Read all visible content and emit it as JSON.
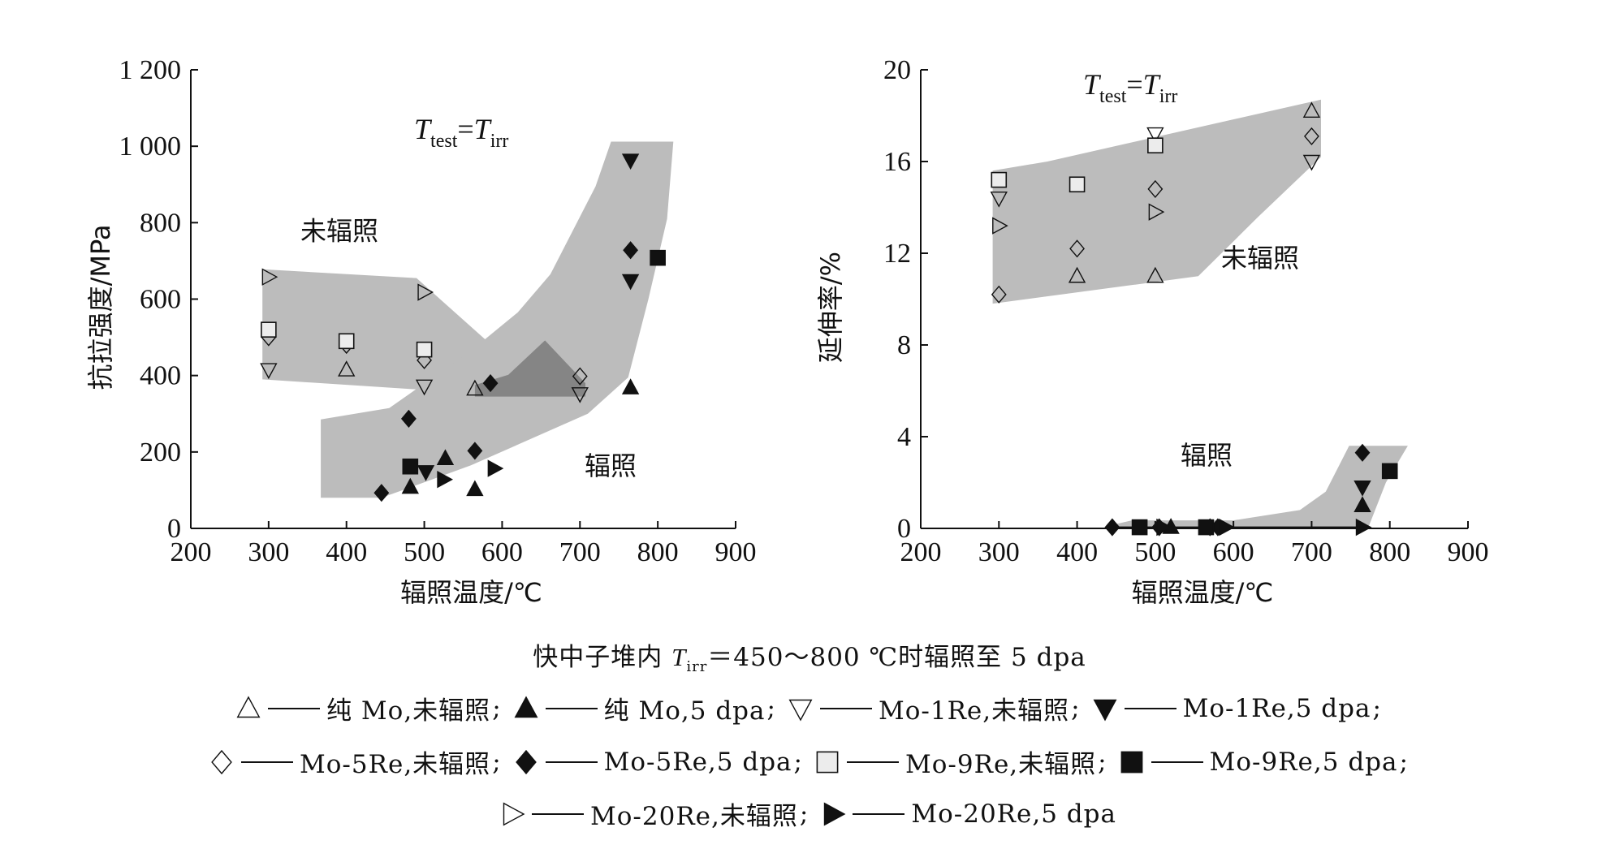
{
  "colors": {
    "band": "#bcbcbc",
    "overlap": "#858585",
    "ink": "#111111"
  },
  "chart_data": [
    {
      "type": "scatter",
      "xlabel": "辐照温度/℃",
      "ylabel": "抗拉强度/MPa",
      "xlim": [
        200,
        900
      ],
      "ylim": [
        0,
        1200
      ],
      "xticks": [
        200,
        300,
        400,
        500,
        600,
        700,
        800,
        900
      ],
      "xtick_labels": [
        "200",
        "300",
        "400",
        "500",
        "600",
        "700",
        "800",
        "900"
      ],
      "yticks": [
        0,
        200,
        400,
        600,
        800,
        1000,
        1200
      ],
      "ytick_labels": [
        "0",
        "200",
        "400",
        "600",
        "800",
        "1 000",
        "1 200"
      ],
      "annotation": {
        "T": "T",
        "sub_test": "test",
        "eq": "=",
        "sub_irr": "irr"
      },
      "region_labels": {
        "unirradiated": "未辐照",
        "irradiated": "辐照"
      },
      "regions": {
        "unirradiated": [
          [
            292,
            678
          ],
          [
            490,
            655
          ],
          [
            600,
            455
          ],
          [
            707,
            380
          ],
          [
            707,
            335
          ],
          [
            292,
            390
          ]
        ],
        "irradiated": [
          [
            367,
            285
          ],
          [
            455,
            315
          ],
          [
            560,
            465
          ],
          [
            620,
            565
          ],
          [
            662,
            665
          ],
          [
            720,
            895
          ],
          [
            740,
            1012
          ],
          [
            820,
            1012
          ],
          [
            812,
            810
          ],
          [
            788,
            600
          ],
          [
            762,
            395
          ],
          [
            710,
            300
          ],
          [
            560,
            165
          ],
          [
            445,
            80
          ],
          [
            367,
            80
          ]
        ],
        "overlap": [
          [
            608,
            402
          ],
          [
            655,
            492
          ],
          [
            707,
            380
          ],
          [
            707,
            345
          ],
          [
            565,
            345
          ],
          [
            565,
            375
          ]
        ]
      },
      "series": [
        {
          "name": "纯 Mo,未辐照",
          "marker": "triangle-up-open",
          "points": [
            [
              400,
              415
            ],
            [
              565,
              365
            ]
          ]
        },
        {
          "name": "纯 Mo,5 dpa",
          "marker": "triangle-up-filled",
          "points": [
            [
              482,
              108
            ],
            [
              527,
              183
            ],
            [
              565,
              102
            ],
            [
              765,
              368
            ]
          ]
        },
        {
          "name": "Mo-1Re,未辐照",
          "marker": "triangle-down-open",
          "points": [
            [
              300,
              415
            ],
            [
              500,
              372
            ],
            [
              700,
              352
            ]
          ]
        },
        {
          "name": "Mo-1Re,5 dpa",
          "marker": "triangle-down-filled",
          "points": [
            [
              502,
              148
            ],
            [
              765,
              963
            ],
            [
              765,
              648
            ]
          ]
        },
        {
          "name": "Mo-5Re,未辐照",
          "marker": "diamond-open",
          "points": [
            [
              300,
              500
            ],
            [
              400,
              480
            ],
            [
              500,
              440
            ],
            [
              700,
              398
            ]
          ]
        },
        {
          "name": "Mo-5Re,5 dpa",
          "marker": "diamond-filled",
          "points": [
            [
              445,
              93
            ],
            [
              480,
              287
            ],
            [
              565,
              203
            ],
            [
              585,
              380
            ],
            [
              765,
              728
            ]
          ]
        },
        {
          "name": "Mo-9Re,未辐照",
          "marker": "square-open",
          "points": [
            [
              300,
              520
            ],
            [
              400,
              490
            ],
            [
              500,
              468
            ]
          ]
        },
        {
          "name": "Mo-9Re,5 dpa",
          "marker": "square-filled",
          "points": [
            [
              482,
              162
            ],
            [
              800,
              708
            ]
          ]
        },
        {
          "name": "Mo-20Re,未辐照",
          "marker": "triangle-right-open",
          "points": [
            [
              300,
              658
            ],
            [
              500,
              618
            ]
          ]
        },
        {
          "name": "Mo-20Re,5 dpa",
          "marker": "triangle-right-filled",
          "points": [
            [
              525,
              128
            ],
            [
              590,
              157
            ]
          ]
        }
      ]
    },
    {
      "type": "scatter",
      "xlabel": "辐照温度/℃",
      "ylabel": "延伸率/%",
      "xlim": [
        200,
        900
      ],
      "ylim": [
        0,
        20
      ],
      "xticks": [
        200,
        300,
        400,
        500,
        600,
        700,
        800,
        900
      ],
      "xtick_labels": [
        "200",
        "300",
        "400",
        "500",
        "600",
        "700",
        "800",
        "900"
      ],
      "yticks": [
        0,
        4,
        8,
        12,
        16,
        20
      ],
      "ytick_labels": [
        "0",
        "4",
        "8",
        "12",
        "16",
        "20"
      ],
      "annotation": {
        "T": "T",
        "sub_test": "test",
        "eq": "=",
        "sub_irr": "irr"
      },
      "region_labels": {
        "unirradiated": "未辐照",
        "irradiated": "辐照"
      },
      "regions": {
        "unirradiated": [
          [
            292,
            15.6
          ],
          [
            362,
            16.0
          ],
          [
            712,
            18.7
          ],
          [
            712,
            16.2
          ],
          [
            632,
            13.6
          ],
          [
            555,
            11.0
          ],
          [
            292,
            9.8
          ]
        ],
        "irradiated": [
          [
            445,
            0.15
          ],
          [
            470,
            0.35
          ],
          [
            600,
            0.35
          ],
          [
            685,
            0.8
          ],
          [
            718,
            1.6
          ],
          [
            748,
            3.6
          ],
          [
            823,
            3.6
          ],
          [
            795,
            2.0
          ],
          [
            772,
            0.0
          ],
          [
            445,
            0.0
          ]
        ]
      },
      "series": [
        {
          "name": "纯 Mo,未辐照",
          "marker": "triangle-up-open",
          "points": [
            [
              400,
              11.0
            ],
            [
              500,
              11.0
            ],
            [
              700,
              18.2
            ]
          ]
        },
        {
          "name": "纯 Mo,5 dpa",
          "marker": "triangle-up-filled",
          "points": [
            [
              520,
              0.05
            ],
            [
              765,
              1.0
            ]
          ]
        },
        {
          "name": "Mo-1Re,未辐照",
          "marker": "triangle-down-open",
          "points": [
            [
              300,
              14.4
            ],
            [
              500,
              17.2
            ],
            [
              700,
              16.0
            ]
          ]
        },
        {
          "name": "Mo-1Re,5 dpa",
          "marker": "triangle-down-filled",
          "points": [
            [
              765,
              1.8
            ]
          ]
        },
        {
          "name": "Mo-5Re,未辐照",
          "marker": "diamond-open",
          "points": [
            [
              300,
              10.2
            ],
            [
              400,
              12.2
            ],
            [
              500,
              14.8
            ],
            [
              700,
              17.1
            ]
          ]
        },
        {
          "name": "Mo-5Re,5 dpa",
          "marker": "diamond-filled",
          "points": [
            [
              445,
              0.05
            ],
            [
              505,
              0.05
            ],
            [
              570,
              0.05
            ],
            [
              580,
              0.05
            ],
            [
              765,
              3.3
            ]
          ]
        },
        {
          "name": "Mo-9Re,未辐照",
          "marker": "square-open",
          "points": [
            [
              300,
              15.2
            ],
            [
              400,
              15.0
            ],
            [
              500,
              16.7
            ]
          ]
        },
        {
          "name": "Mo-9Re,5 dpa",
          "marker": "square-filled",
          "points": [
            [
              480,
              0.05
            ],
            [
              565,
              0.05
            ],
            [
              800,
              2.5
            ]
          ]
        },
        {
          "name": "Mo-20Re,未辐照",
          "marker": "triangle-right-open",
          "points": [
            [
              300,
              13.2
            ],
            [
              500,
              13.8
            ]
          ]
        },
        {
          "name": "Mo-20Re,5 dpa",
          "marker": "triangle-right-filled",
          "points": [
            [
              510,
              0.05
            ],
            [
              590,
              0.05
            ],
            [
              765,
              0.05
            ]
          ]
        }
      ]
    }
  ],
  "caption": {
    "prefix": "快中子堆内 ",
    "T": "T",
    "sub": "irr",
    "suffix": "＝450～800 ℃时辐照至 5 dpa"
  },
  "legend": [
    {
      "marker": "triangle-up-open",
      "label": "纯 Mo,未辐照"
    },
    {
      "marker": "triangle-up-filled",
      "label": "纯 Mo,5 dpa"
    },
    {
      "marker": "triangle-down-open",
      "label": "Mo-1Re,未辐照"
    },
    {
      "marker": "triangle-down-filled",
      "label": "Mo-1Re,5 dpa"
    },
    {
      "marker": "diamond-open",
      "label": "Mo-5Re,未辐照"
    },
    {
      "marker": "diamond-filled",
      "label": "Mo-5Re,5 dpa"
    },
    {
      "marker": "square-open",
      "label": "Mo-9Re,未辐照"
    },
    {
      "marker": "square-filled",
      "label": "Mo-9Re,5 dpa"
    },
    {
      "marker": "triangle-right-open",
      "label": "Mo-20Re,未辐照"
    },
    {
      "marker": "triangle-right-filled",
      "label": "Mo-20Re,5 dpa"
    }
  ],
  "legend_separators": [
    ";",
    ";",
    ";",
    ";",
    ";",
    ";",
    ";",
    ";",
    ";",
    ""
  ]
}
